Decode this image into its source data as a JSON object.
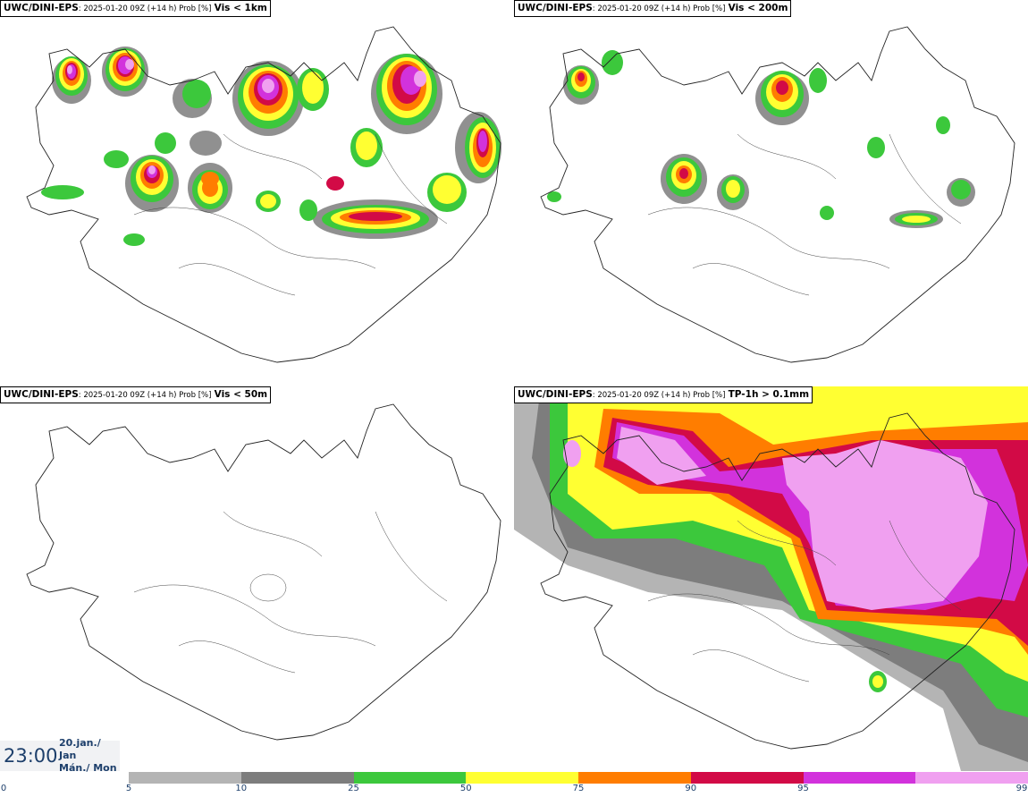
{
  "panels": [
    {
      "model": "UWC/DINI-EPS",
      "meta": ": 2025-01-20 09Z (+14 h) Prob [%]",
      "variable": "Vis < 1km"
    },
    {
      "model": "UWC/DINI-EPS",
      "meta": ": 2025-01-20 09Z (+14 h) Prob [%]",
      "variable": "Vis < 200m"
    },
    {
      "model": "UWC/DINI-EPS",
      "meta": ": 2025-01-20 09Z (+14 h) Prob [%]",
      "variable": "Vis < 50m"
    },
    {
      "model": "UWC/DINI-EPS",
      "meta": ": 2025-01-20 09Z (+14 h) Prob [%]",
      "variable": "TP-1h > 0.1mm"
    }
  ],
  "valid_time": {
    "time": "23:00",
    "date_line": "20.jan./ Jan",
    "day_line": "Mán./ Mon"
  },
  "colorbar": {
    "ticks": [
      "0",
      "5",
      "10",
      "25",
      "50",
      "75",
      "90",
      "95",
      "99"
    ],
    "colors": [
      "#b4b4b4",
      "#7d7d7d",
      "#3cc83c",
      "#ffff32",
      "#ff7d00",
      "#d20a46",
      "#d232dc",
      "#f0a0f0"
    ]
  }
}
